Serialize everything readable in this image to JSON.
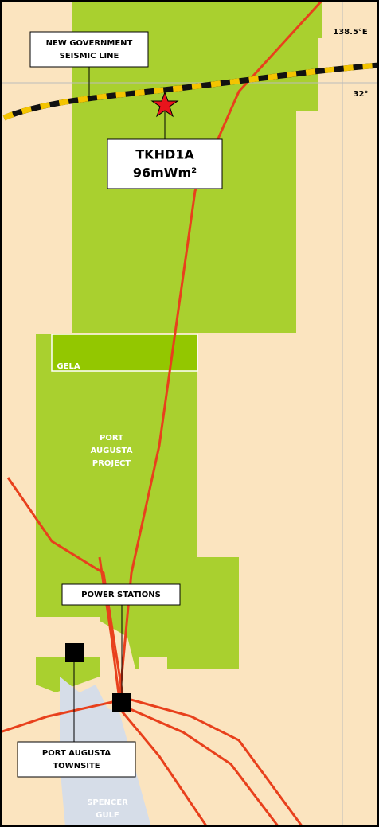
{
  "map": {
    "grid_labels": {
      "longitude": "138.5°E",
      "latitude": "32°"
    },
    "seismic_line": [
      "NEW GOVERNMENT",
      "SEISMIC LINE"
    ],
    "well": {
      "name": "TKHD1A",
      "heat_flow": "96mWm²"
    },
    "gela": "GELA",
    "project": [
      "PORT",
      "AUGUSTA",
      "PROJECT"
    ],
    "power_stations": "POWER STATIONS",
    "townsite": [
      "PORT AUGUSTA",
      "TOWNSITE"
    ],
    "gulf": [
      "SPENCER",
      "GULF"
    ]
  }
}
